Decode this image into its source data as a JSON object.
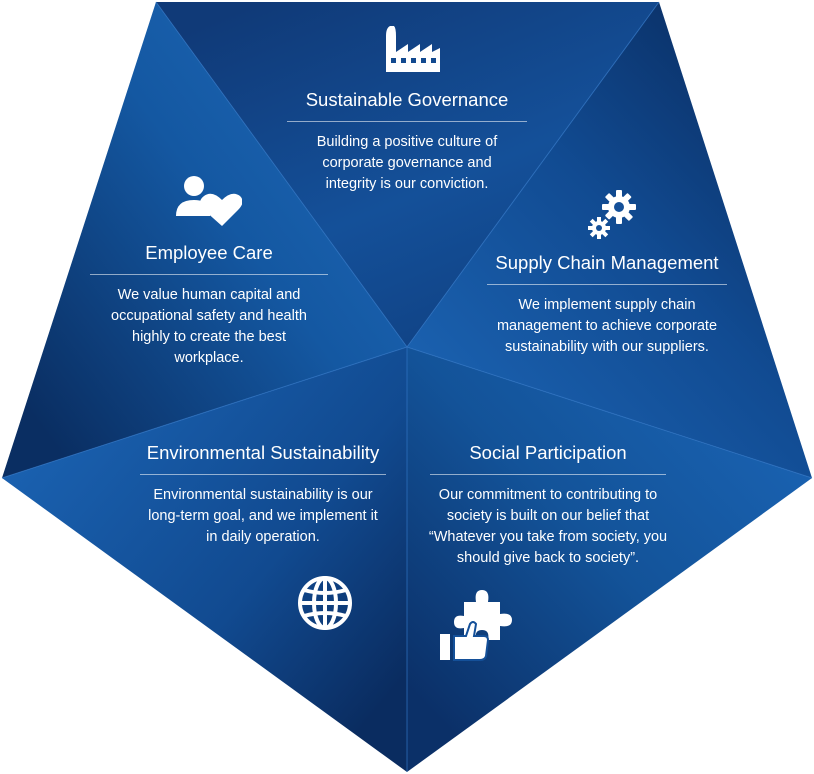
{
  "colors": {
    "panel_dark": "#0a2a5c",
    "panel_mid": "#1456a0",
    "panel_light": "#1a63b2",
    "text": "#ffffff"
  },
  "sections": [
    {
      "key": "governance",
      "icon": "factory-icon",
      "title": "Sustainable Governance",
      "description": "Building a positive culture of corporate governance and integrity is our conviction."
    },
    {
      "key": "employee",
      "icon": "people-heart-icon",
      "title": "Employee Care",
      "description": "We value human capital and occupational safety and health highly to create the best workplace."
    },
    {
      "key": "supply",
      "icon": "gears-icon",
      "title": "Supply Chain Management",
      "description": "We implement supply chain management to achieve corporate sustainability with our suppliers."
    },
    {
      "key": "environment",
      "icon": "globe-icon",
      "title": "Environmental Sustainability",
      "description": "Environmental sustainability is our long-term goal, and we implement it in daily operation."
    },
    {
      "key": "social",
      "icon": "hand-puzzle-icon",
      "title": "Social Participation",
      "description": "Our commitment to contributing to society is built on our belief that “Whatever you take from society, you should give back to society”."
    }
  ]
}
